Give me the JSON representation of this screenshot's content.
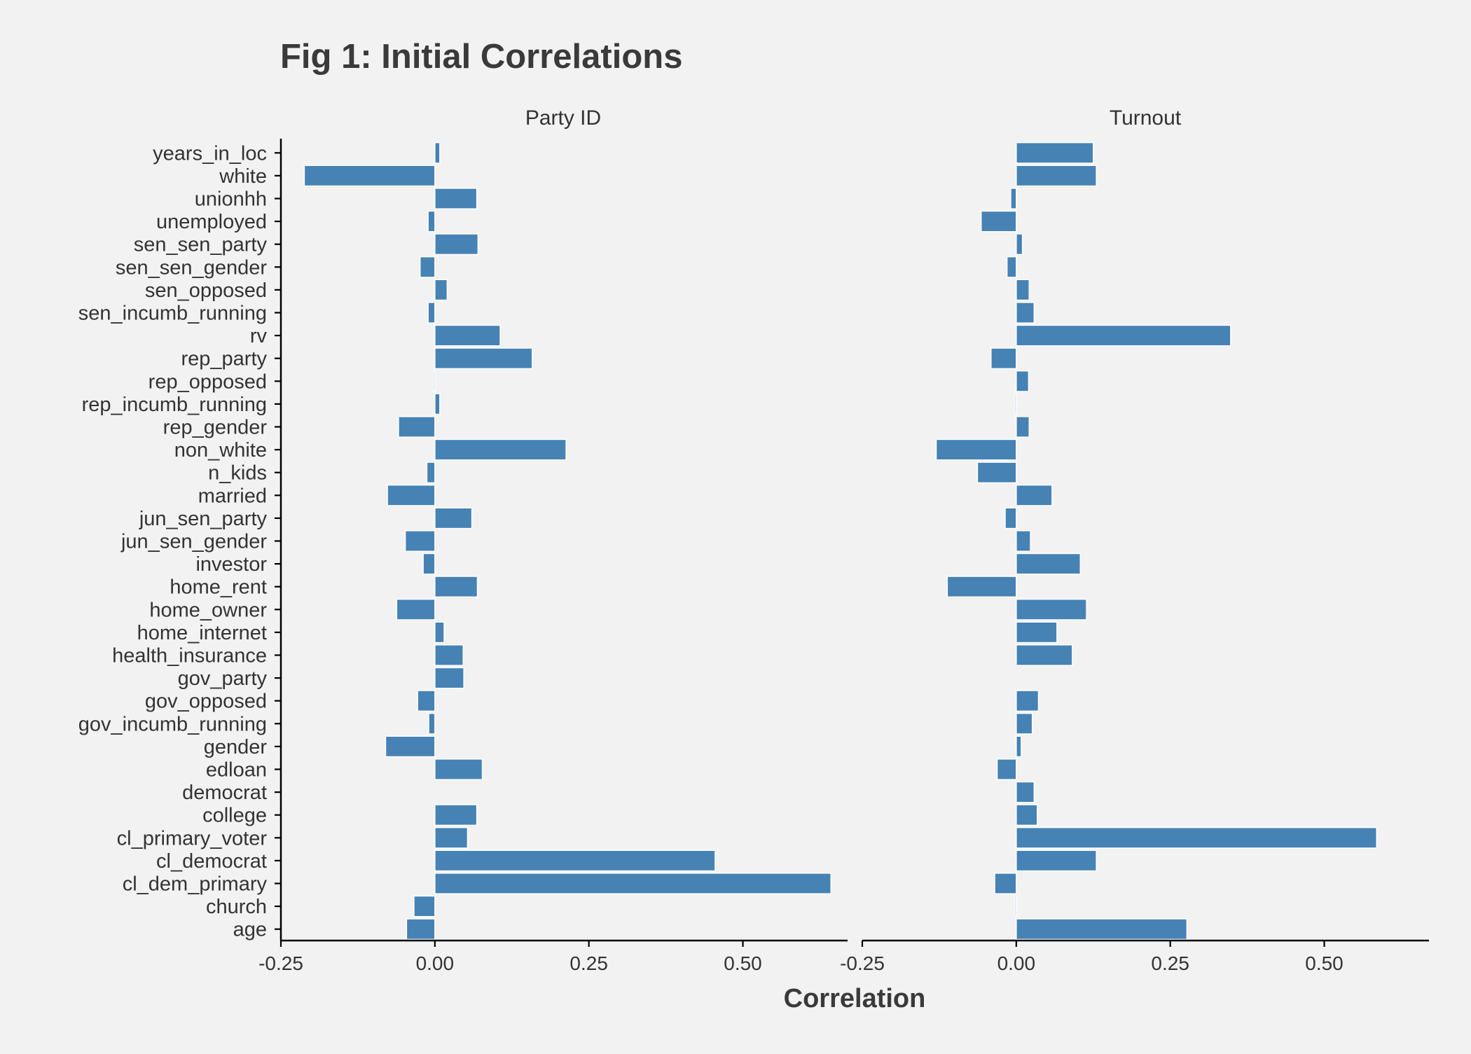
{
  "chart_data": {
    "type": "bar",
    "orientation": "horizontal",
    "title": "Fig 1: Initial Correlations",
    "xlabel": "Correlation",
    "ylabel": "",
    "xlim": [
      -0.25,
      0.67
    ],
    "x_ticks": [
      "-0.25",
      "0.00",
      "0.25",
      "0.50"
    ],
    "x_tick_values": [
      -0.25,
      0.0,
      0.25,
      0.5
    ],
    "bar_color": "#4682b4",
    "grid": false,
    "categories": [
      "years_in_loc",
      "white",
      "unionhh",
      "unemployed",
      "sen_sen_party",
      "sen_sen_gender",
      "sen_opposed",
      "sen_incumb_running",
      "rv",
      "rep_party",
      "rep_opposed",
      "rep_incumb_running",
      "rep_gender",
      "non_white",
      "n_kids",
      "married",
      "jun_sen_party",
      "jun_sen_gender",
      "investor",
      "home_rent",
      "home_owner",
      "home_internet",
      "health_insurance",
      "gov_party",
      "gov_opposed",
      "gov_incumb_running",
      "gender",
      "edloan",
      "democrat",
      "college",
      "cl_primary_voter",
      "cl_democrat",
      "cl_dem_primary",
      "church",
      "age"
    ],
    "series": [
      {
        "name": "Party ID",
        "values": [
          0.008,
          -0.212,
          0.068,
          -0.011,
          0.07,
          -0.024,
          0.02,
          -0.011,
          0.106,
          0.158,
          -0.002,
          0.008,
          -0.059,
          0.213,
          -0.013,
          -0.077,
          0.06,
          -0.048,
          -0.019,
          0.069,
          -0.062,
          0.015,
          0.046,
          0.047,
          -0.028,
          -0.01,
          -0.08,
          0.077,
          null,
          0.068,
          0.053,
          0.455,
          0.643,
          -0.034,
          -0.046
        ]
      },
      {
        "name": "Turnout",
        "values": [
          0.125,
          0.13,
          -0.009,
          -0.057,
          0.01,
          -0.015,
          0.021,
          0.029,
          0.348,
          -0.041,
          0.02,
          -0.002,
          0.021,
          -0.13,
          -0.063,
          0.058,
          -0.018,
          0.023,
          0.104,
          -0.112,
          0.114,
          0.066,
          0.091,
          null,
          0.036,
          0.026,
          0.008,
          -0.031,
          0.029,
          0.034,
          0.585,
          0.13,
          -0.035,
          -0.002,
          0.277
        ]
      }
    ]
  }
}
